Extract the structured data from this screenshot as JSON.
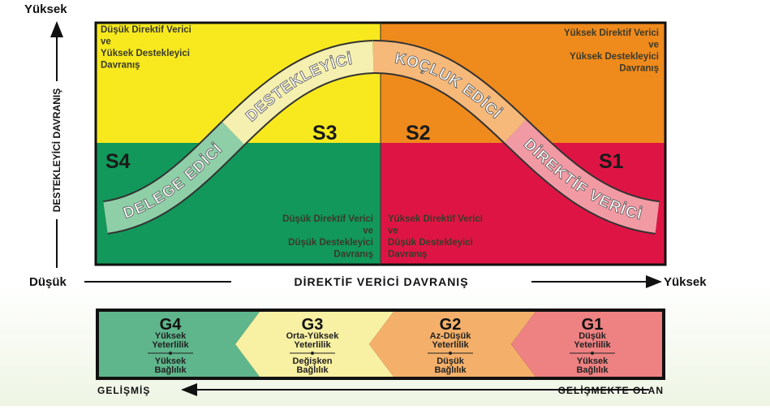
{
  "y_axis": {
    "high": "Yüksek",
    "label": "DESTEKLEYİCİ DAVRANIŞ"
  },
  "x_axis": {
    "low": "Düşük",
    "label": "DİREKTİF VERİCİ DAVRANIŞ",
    "high": "Yüksek"
  },
  "quadrants": [
    {
      "style": "S3",
      "description": [
        "Düşük Direktif Verici",
        "ve",
        "Yüksek Destekleyici",
        "Davranış"
      ]
    },
    {
      "style": "S2",
      "description": [
        "Yüksek Direktif Verici",
        "ve",
        "Yüksek Destekleyici",
        "Davranış"
      ]
    },
    {
      "style": "S4",
      "description": [
        "Düşük Direktif Verici",
        "ve",
        "Düşük Destekleyici",
        "Davranış"
      ]
    },
    {
      "style": "S1",
      "description": [
        "Yüksek Direktif Verici",
        "ve",
        "Düşük Destekleyici",
        "Davranış"
      ]
    }
  ],
  "curve": [
    "DELEGE EDİCİ",
    "DESTEKLEYİCİ",
    "KOÇLUK EDİCİ",
    "DİREKTİF VERİCİ"
  ],
  "development_levels": [
    {
      "level": "G4",
      "competence": [
        "Yüksek",
        "Yeterlilik"
      ],
      "commitment": [
        "Yüksek",
        "Bağlılık"
      ]
    },
    {
      "level": "G3",
      "competence": [
        "Orta-Yüksek",
        "Yeterlilik"
      ],
      "commitment": [
        "Değişken",
        "Bağlılık"
      ]
    },
    {
      "level": "G2",
      "competence": [
        "Az-Düşük",
        "Yeterlilik"
      ],
      "commitment": [
        "Düşük",
        "Bağlılık"
      ]
    },
    {
      "level": "G1",
      "competence": [
        "Düşük",
        "Yeterlilik"
      ],
      "commitment": [
        "Yüksek",
        "Bağlılık"
      ]
    }
  ],
  "development_axis": {
    "developed": "GELİŞMİŞ",
    "developing": "GELİŞMEKTE OLAN"
  }
}
